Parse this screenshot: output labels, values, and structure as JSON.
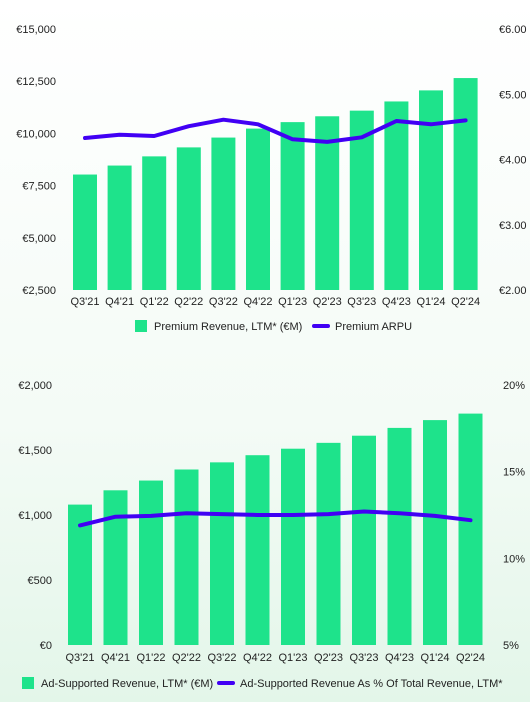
{
  "chart_data": [
    {
      "type": "bar",
      "categories": [
        "Q3'21",
        "Q4'21",
        "Q1'22",
        "Q2'22",
        "Q3'22",
        "Q4'22",
        "Q1'23",
        "Q2'23",
        "Q3'23",
        "Q4'23",
        "Q1'24",
        "Q2'24"
      ],
      "series": [
        {
          "name": "Premium Revenue, LTM* (€M)",
          "kind": "bar",
          "axis": "left",
          "values": [
            8030,
            8460,
            8900,
            9330,
            9800,
            10230,
            10540,
            10820,
            11090,
            11530,
            12060,
            12650
          ]
        },
        {
          "name": "Premium ARPU",
          "kind": "line",
          "axis": "right",
          "values": [
            4.33,
            4.38,
            4.36,
            4.51,
            4.61,
            4.54,
            4.31,
            4.27,
            4.34,
            4.59,
            4.54,
            4.6
          ]
        }
      ],
      "y_left": {
        "min": 2500,
        "max": 15000,
        "ticks": [
          2500,
          5000,
          7500,
          10000,
          12500,
          15000
        ],
        "tick_labels": [
          "€2,500",
          "€5,000",
          "€7,500",
          "€10,000",
          "€12,500",
          "€15,000"
        ]
      },
      "y_right": {
        "min": 2.0,
        "max": 6.0,
        "ticks": [
          2,
          3,
          4,
          5,
          6
        ],
        "tick_labels": [
          "€2.00",
          "€3.00",
          "€4.00",
          "€5.00",
          "€6.00"
        ]
      },
      "grid": false,
      "legend": "bottom",
      "colors": {
        "bar": "#1ee38b",
        "line": "#4100f4"
      }
    },
    {
      "type": "bar",
      "categories": [
        "Q3'21",
        "Q4'21",
        "Q1'22",
        "Q2'22",
        "Q3'22",
        "Q4'22",
        "Q1'23",
        "Q2'23",
        "Q3'23",
        "Q4'23",
        "Q1'24",
        "Q2'24"
      ],
      "series": [
        {
          "name": "Ad-Supported Revenue, LTM* (€M)",
          "kind": "bar",
          "axis": "left",
          "values": [
            1080,
            1190,
            1265,
            1350,
            1405,
            1460,
            1510,
            1555,
            1610,
            1670,
            1730,
            1780
          ]
        },
        {
          "name": "Ad-Supported Revenue As % Of Total Revenue, LTM*",
          "kind": "line",
          "axis": "right",
          "values": [
            11.9,
            12.4,
            12.45,
            12.6,
            12.55,
            12.5,
            12.5,
            12.55,
            12.7,
            12.6,
            12.45,
            12.2
          ]
        }
      ],
      "y_left": {
        "min": 0,
        "max": 2000,
        "ticks": [
          0,
          500,
          1000,
          1500,
          2000
        ],
        "tick_labels": [
          "€0",
          "€500",
          "€1,000",
          "€1,500",
          "€2,000"
        ]
      },
      "y_right": {
        "min": 5,
        "max": 20,
        "ticks": [
          5,
          10,
          15,
          20
        ],
        "tick_labels": [
          "5%",
          "10%",
          "15%",
          "20%"
        ]
      },
      "grid": false,
      "legend": "bottom",
      "colors": {
        "bar": "#1ee38b",
        "line": "#4100f4"
      }
    }
  ]
}
